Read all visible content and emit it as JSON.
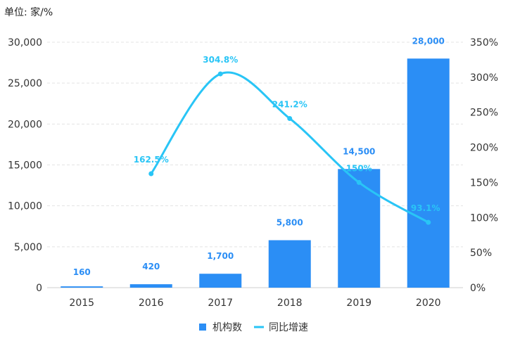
{
  "chart_data": {
    "type": "bar",
    "unit_label": "单位: 家/%",
    "categories": [
      "2015",
      "2016",
      "2017",
      "2018",
      "2019",
      "2020"
    ],
    "series": [
      {
        "name": "机构数",
        "kind": "bar",
        "axis": "left",
        "color": "#2b8ef5",
        "values": [
          160,
          420,
          1700,
          5800,
          14500,
          28000
        ],
        "labels": [
          "160",
          "420",
          "1,700",
          "5,800",
          "14,500",
          "28,000"
        ]
      },
      {
        "name": "同比增速",
        "kind": "line",
        "axis": "right",
        "color": "#29c5f6",
        "values": [
          null,
          162.5,
          304.8,
          241.2,
          150,
          93.1
        ],
        "labels": [
          "",
          "162.5%",
          "304.8%",
          "241.2%",
          "150%",
          "93.1%"
        ]
      }
    ],
    "y_left": {
      "range": [
        0,
        30000
      ],
      "ticks": [
        0,
        5000,
        10000,
        15000,
        20000,
        25000,
        30000
      ],
      "tick_labels": [
        "0",
        "5,000",
        "10,000",
        "15,000",
        "20,000",
        "25,000",
        "30,000"
      ]
    },
    "y_right": {
      "range": [
        0,
        350
      ],
      "ticks": [
        0,
        50,
        100,
        150,
        200,
        250,
        300,
        350
      ],
      "tick_labels": [
        "0%",
        "50%",
        "100%",
        "150%",
        "200%",
        "250%",
        "300%",
        "350%"
      ]
    },
    "legend": {
      "position": "bottom-center"
    },
    "grid": true
  }
}
